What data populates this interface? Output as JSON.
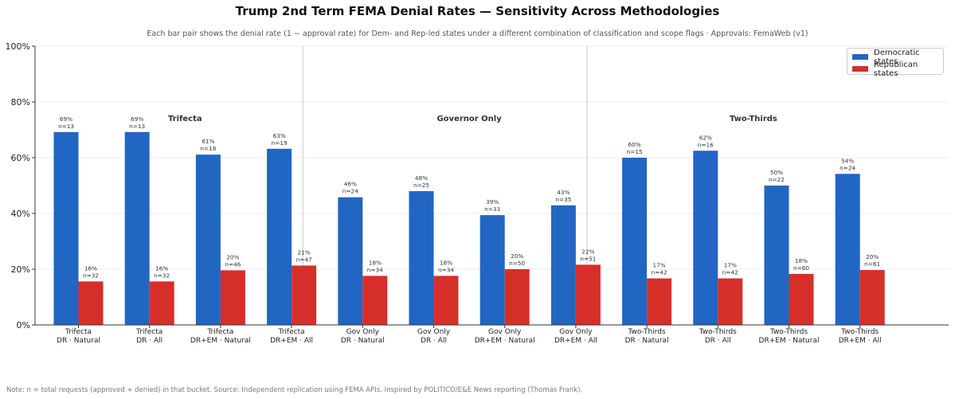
{
  "title": "Trump 2nd Term FEMA Denial Rates — Sensitivity Across Methodologies",
  "subtitle": "Each bar pair shows the denial rate (1 − approval rate) for Dem- and Rep-led states under a different combination of classification and scope flags · Approvals: FemaWeb (v1)",
  "note": "Note: n = total requests (approved + denied) in that bucket. Source: Independent replication using FEMA APIs. Inspired by POLITICO/E&E News reporting (Thomas Frank).",
  "colors": {
    "dem": "#2166c2",
    "rep": "#d62f2a"
  },
  "chart_data": {
    "type": "bar",
    "ylim": [
      0,
      100
    ],
    "yticks": [
      "0%",
      "20%",
      "40%",
      "60%",
      "80%",
      "100%"
    ],
    "grid": true,
    "legend_position": "top-right",
    "legend": [
      "Democratic states",
      "Republican states"
    ],
    "groups": [
      {
        "label": "Trifecta",
        "start": 0,
        "end": 3
      },
      {
        "label": "Governor Only",
        "start": 4,
        "end": 7
      },
      {
        "label": "Two-Thirds",
        "start": 8,
        "end": 11
      }
    ],
    "categories": [
      [
        "Trifecta",
        "DR · Natural"
      ],
      [
        "Trifecta",
        "DR · All"
      ],
      [
        "Trifecta",
        "DR+EM · Natural"
      ],
      [
        "Trifecta",
        "DR+EM · All"
      ],
      [
        "Gov Only",
        "DR · Natural"
      ],
      [
        "Gov Only",
        "DR · All"
      ],
      [
        "Gov Only",
        "DR+EM · Natural"
      ],
      [
        "Gov Only",
        "DR+EM · All"
      ],
      [
        "Two-Thirds",
        "DR · Natural"
      ],
      [
        "Two-Thirds",
        "DR · All"
      ],
      [
        "Two-Thirds",
        "DR+EM · Natural"
      ],
      [
        "Two-Thirds",
        "DR+EM · All"
      ]
    ],
    "series": [
      {
        "name": "Democratic states",
        "values": [
          69.2,
          69.2,
          61.1,
          63.2,
          45.8,
          48.0,
          39.4,
          42.9,
          60.0,
          62.5,
          50.0,
          54.2
        ],
        "labels": [
          "69%",
          "69%",
          "61%",
          "63%",
          "46%",
          "48%",
          "39%",
          "43%",
          "60%",
          "62%",
          "50%",
          "54%"
        ],
        "n": [
          "n=13",
          "n=13",
          "n=18",
          "n=19",
          "n=24",
          "n=25",
          "n=33",
          "n=35",
          "n=15",
          "n=16",
          "n=22",
          "n=24"
        ]
      },
      {
        "name": "Republican states",
        "values": [
          15.6,
          15.6,
          19.6,
          21.3,
          17.6,
          17.6,
          20.0,
          21.6,
          16.7,
          16.7,
          18.3,
          19.7
        ],
        "labels": [
          "16%",
          "16%",
          "20%",
          "21%",
          "18%",
          "18%",
          "20%",
          "22%",
          "17%",
          "17%",
          "18%",
          "20%"
        ],
        "n": [
          "n=32",
          "n=32",
          "n=46",
          "n=47",
          "n=34",
          "n=34",
          "n=50",
          "n=51",
          "n=42",
          "n=42",
          "n=60",
          "n=61"
        ]
      }
    ]
  }
}
